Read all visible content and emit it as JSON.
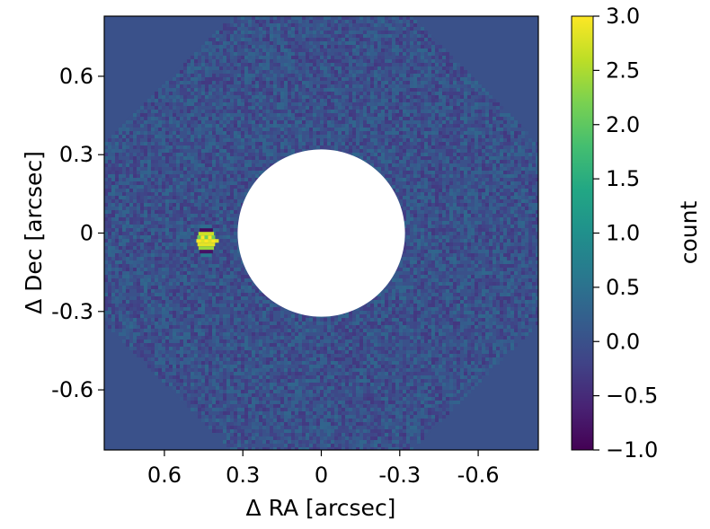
{
  "chart_data": {
    "type": "heatmap",
    "title": "",
    "xlabel": "Δ RA [arcsec]",
    "ylabel": "Δ Dec [arcsec]",
    "xlim": [
      0.83,
      -0.83
    ],
    "ylim": [
      -0.83,
      0.83
    ],
    "x_ticks": [
      0.6,
      0.3,
      0,
      -0.3,
      -0.6
    ],
    "x_tick_labels": [
      "0.6",
      "0.3",
      "0",
      "-0.3",
      "-0.6"
    ],
    "y_ticks": [
      0.6,
      0.3,
      0,
      -0.3,
      -0.6
    ],
    "y_tick_labels": [
      "0.6",
      "0.3",
      "0",
      "-0.3",
      "-0.6"
    ],
    "x_inverted": true,
    "colormap": "viridis",
    "colorbar": {
      "label": "count",
      "range": [
        -1.0,
        3.0
      ],
      "ticks": [
        3.0,
        2.5,
        2.0,
        1.5,
        1.0,
        0.5,
        0.0,
        -0.5,
        -1.0
      ],
      "tick_labels": [
        "3.0",
        "2.5",
        "2.0",
        "1.5",
        "1.0",
        "0.5",
        "0.0",
        "−0.5",
        "−1.0"
      ]
    },
    "background_value": 0.0,
    "noise_amplitude": 0.35,
    "mask": {
      "shape": "circle",
      "center": [
        0,
        0
      ],
      "radius": 0.32
    },
    "field_of_view": {
      "shape": "octagon",
      "half_width": 0.83
    },
    "sources": [
      {
        "ra": 0.44,
        "dec": -0.03,
        "peak": 3.0
      }
    ],
    "grid": false
  },
  "colors": {
    "background_field": "#3b528b",
    "mask_fill": "#ffffff",
    "peak": "#fde725",
    "low": "#440154"
  }
}
